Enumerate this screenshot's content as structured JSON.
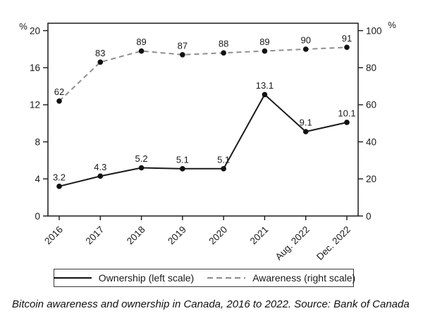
{
  "chart_data": {
    "type": "line",
    "caption": "Bitcoin awareness and ownership in Canada, 2016 to 2022. Source: Bank of Canada",
    "categories": [
      "2016",
      "2017",
      "2018",
      "2019",
      "2020",
      "2021",
      "Aug. 2022",
      "Dec. 2022"
    ],
    "series": [
      {
        "name": "Ownership (left scale)",
        "axis": "left",
        "line_style": "solid",
        "color": "#1a1a1a",
        "marker_color": "#111111",
        "values": [
          3.2,
          4.3,
          5.2,
          5.1,
          5.1,
          13.1,
          9.1,
          10.1
        ]
      },
      {
        "name": "Awareness (right scale)",
        "axis": "right",
        "line_style": "dashed",
        "color": "#8f8f8f",
        "marker_color": "#111111",
        "values": [
          62,
          83,
          89,
          87,
          88,
          89,
          90,
          91
        ]
      }
    ],
    "left_axis": {
      "label": "%",
      "ticks": [
        0,
        4,
        8,
        12,
        16,
        20
      ],
      "range": [
        0,
        20.8
      ]
    },
    "right_axis": {
      "label": "%",
      "ticks": [
        0,
        20,
        40,
        60,
        80,
        100
      ],
      "range": [
        0,
        104
      ]
    },
    "point_labels_shown": true,
    "grid": false,
    "legend_position": "bottom"
  }
}
